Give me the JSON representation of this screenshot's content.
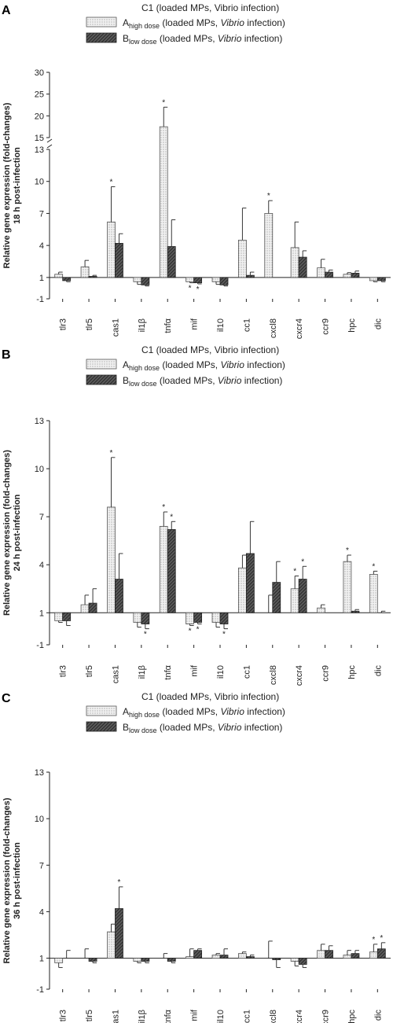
{
  "legend": {
    "c1_label": "C1 (loaded MPs, Vibrio infection)",
    "a_prefix": "A",
    "a_sub": "high dose",
    "b_prefix": "B",
    "b_sub": "low dose",
    "suffix_pre": " (loaded MPs, ",
    "vibrio": "Vibrio",
    "suffix_post": " infection)"
  },
  "colors": {
    "axis": "#222222",
    "dark_bar": "#3a3a3a",
    "dot_fill": "#f2f2f2"
  },
  "chart_data": [
    {
      "panel": "A",
      "type": "bar",
      "ylabel_line1": "Relative gene expression (fold-changes)",
      "ylabel_line2": "18 h post-infection",
      "broken_axis": true,
      "ylim": [
        -1,
        30
      ],
      "lower_ticks": [
        "-1",
        "1",
        "4",
        "7",
        "10",
        "13"
      ],
      "upper_ticks": [
        "15",
        "20",
        "25",
        "30"
      ],
      "categories": [
        "tlr3",
        "tlr5",
        "cas1",
        "il1β",
        "tnfα",
        "mif",
        "il10",
        "cc1",
        "cxcl8",
        "cxcr4",
        "ccr9",
        "hpc",
        "dic"
      ],
      "series": [
        {
          "name": "C1",
          "values": [
            1,
            1,
            1,
            1,
            1,
            1,
            1,
            1,
            1,
            1,
            1,
            1,
            1
          ]
        },
        {
          "name": "A",
          "values": [
            1.3,
            2.0,
            6.2,
            0.6,
            17.5,
            0.6,
            0.6,
            4.5,
            7.0,
            3.8,
            1.9,
            1.3,
            0.7
          ],
          "errors": [
            0.2,
            0.6,
            3.3,
            0.25,
            4.5,
            0.1,
            0.25,
            3.0,
            1.2,
            2.4,
            0.8,
            0.15,
            0.1
          ],
          "sig": [
            0,
            0,
            1,
            0,
            1,
            1,
            0,
            0,
            1,
            0,
            0,
            0,
            0
          ]
        },
        {
          "name": "B",
          "values": [
            0.7,
            1.1,
            4.2,
            0.3,
            3.9,
            0.5,
            0.3,
            1.2,
            1.0,
            2.9,
            1.5,
            1.4,
            0.7
          ],
          "errors": [
            0.1,
            0.1,
            0.9,
            0.1,
            2.5,
            0.1,
            0.1,
            0.3,
            0.0,
            0.6,
            0.2,
            0.2,
            0.1
          ],
          "sig": [
            0,
            0,
            0,
            0,
            0,
            1,
            0,
            0,
            0,
            0,
            0,
            0,
            0
          ]
        }
      ]
    },
    {
      "panel": "B",
      "type": "bar",
      "ylabel_line1": "Relative gene expression (fold-changes)",
      "ylabel_line2": "24 h post-infection",
      "broken_axis": false,
      "ylim": [
        -1,
        13
      ],
      "lower_ticks": [
        "-1",
        "1",
        "4",
        "7",
        "10",
        "13"
      ],
      "categories": [
        "tlr3",
        "tlr5",
        "cas1",
        "il1β",
        "tnfα",
        "mif",
        "il10",
        "cc1",
        "cxcl8",
        "cxcr4",
        "ccr9",
        "hpc",
        "dic"
      ],
      "series": [
        {
          "name": "C1",
          "values": [
            1,
            1,
            1,
            1,
            1,
            1,
            1,
            1,
            1,
            1,
            1,
            1,
            1
          ]
        },
        {
          "name": "A",
          "values": [
            0.5,
            1.5,
            7.6,
            0.4,
            6.4,
            0.3,
            0.4,
            3.8,
            1.0,
            2.5,
            1.3,
            4.2,
            3.4
          ],
          "errors": [
            0.1,
            0.6,
            3.1,
            0.3,
            0.9,
            0.1,
            0.3,
            0.8,
            1.1,
            0.8,
            0.2,
            0.4,
            0.2
          ],
          "sig": [
            0,
            0,
            1,
            0,
            1,
            1,
            0,
            0,
            0,
            1,
            0,
            1,
            1
          ]
        },
        {
          "name": "B",
          "values": [
            0.5,
            1.6,
            3.1,
            0.3,
            6.2,
            0.4,
            0.3,
            4.7,
            2.9,
            3.1,
            1.0,
            1.1,
            1.0
          ],
          "errors": [
            0.3,
            0.9,
            1.6,
            0.3,
            0.5,
            0.1,
            0.3,
            2.0,
            1.3,
            0.8,
            0.0,
            0.1,
            0.1
          ],
          "sig": [
            0,
            0,
            0,
            1,
            1,
            1,
            1,
            0,
            0,
            1,
            0,
            0,
            0
          ]
        }
      ]
    },
    {
      "panel": "C",
      "type": "bar",
      "ylabel_line1": "Relative gene expression (fold-changes)",
      "ylabel_line2": "36 h post-infection",
      "broken_axis": false,
      "ylim": [
        -1,
        13
      ],
      "lower_ticks": [
        "-1",
        "1",
        "4",
        "7",
        "10",
        "13"
      ],
      "categories": [
        "tlr3",
        "tlr5",
        "cas1",
        "il1β",
        "tnfα",
        "mif",
        "il10",
        "cc1",
        "cxcl8",
        "cxcr4",
        "ccr9",
        "hpc",
        "dic"
      ],
      "series": [
        {
          "name": "C1",
          "values": [
            1,
            1,
            1,
            1,
            1,
            1,
            1,
            1,
            1,
            1,
            1,
            1,
            1
          ]
        },
        {
          "name": "A",
          "values": [
            0.7,
            1.0,
            2.7,
            0.8,
            1.0,
            1.1,
            1.2,
            1.3,
            1.0,
            0.8,
            1.5,
            1.2,
            1.4
          ],
          "errors": [
            0.3,
            0.6,
            0.5,
            0.1,
            0.3,
            0.5,
            0.1,
            0.1,
            1.1,
            0.3,
            0.4,
            0.3,
            0.5
          ],
          "sig": [
            0,
            0,
            0,
            0,
            0,
            0,
            0,
            0,
            0,
            0,
            0,
            0,
            1
          ]
        },
        {
          "name": "B",
          "values": [
            1.0,
            0.8,
            4.2,
            0.8,
            0.8,
            1.5,
            1.2,
            1.1,
            0.9,
            0.6,
            1.5,
            1.3,
            1.6
          ],
          "errors": [
            0.5,
            0.1,
            1.4,
            0.1,
            0.1,
            0.1,
            0.4,
            0.1,
            0.5,
            0.2,
            0.3,
            0.2,
            0.4
          ],
          "sig": [
            0,
            0,
            1,
            0,
            0,
            0,
            0,
            0,
            0,
            0,
            0,
            0,
            1
          ]
        }
      ]
    }
  ]
}
